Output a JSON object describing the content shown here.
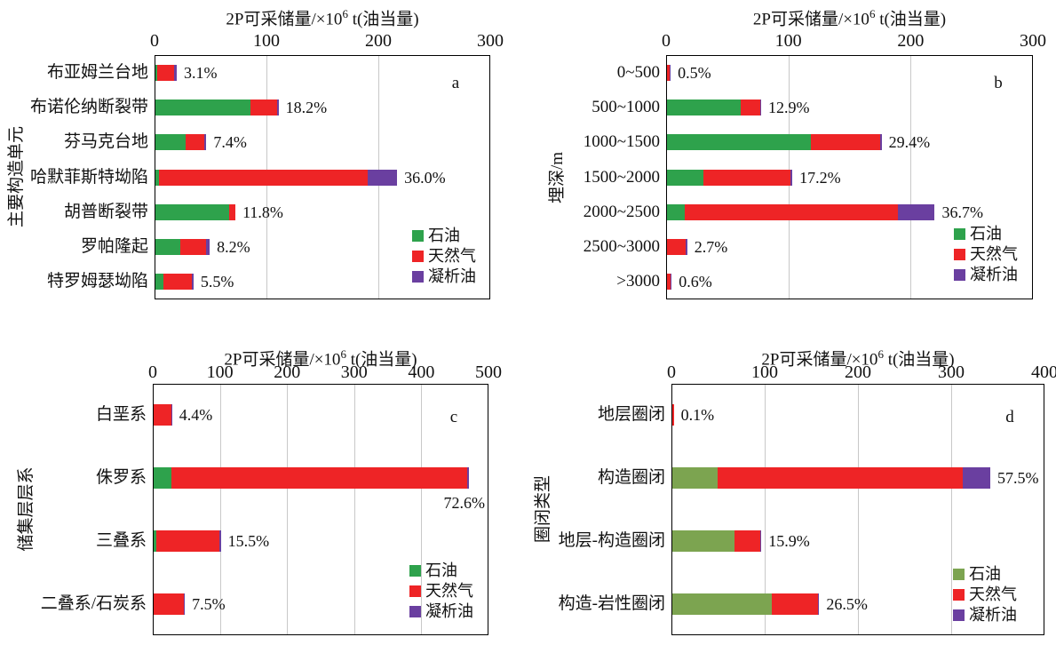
{
  "figure_title": "2P recoverable reserves distribution (4 stacked bar panels)",
  "axis_title": {
    "pre": "2P可采储量/×10",
    "sup": "6",
    "post": " t(油当量)"
  },
  "legend": {
    "oil": "石油",
    "gas": "天然气",
    "condensate": "凝析油"
  },
  "colors": {
    "oil_green": "#2EA24C",
    "oil_olive": "#7CA450",
    "gas_red": "#EE2426",
    "condensate_purple": "#6A3FA0",
    "gridline": "#C8C8C8",
    "frame": "#000000"
  },
  "chart_data": [
    {
      "panel": "a",
      "type": "bar",
      "orientation": "horizontal",
      "stacked": true,
      "xlabel": "2P可采储量/×10⁶ t(油当量)",
      "ylabel": "主要构造单元",
      "xlim": [
        0,
        300
      ],
      "xticks": [
        0,
        100,
        200,
        300
      ],
      "grid": true,
      "legend_position": "inside-bottom-right",
      "categories": [
        "布亚姆兰台地",
        "布诺伦纳断裂带",
        "芬马克台地",
        "哈默菲斯特坳陷",
        "胡普断裂带",
        "罗帕隆起",
        "特罗姆瑟坳陷"
      ],
      "series": [
        {
          "name": "石油",
          "values": [
            1.5,
            85,
            27,
            3,
            66,
            22,
            7
          ]
        },
        {
          "name": "天然气",
          "values": [
            15.5,
            24,
            17,
            187,
            5.5,
            23.5,
            25.5
          ]
        },
        {
          "name": "凝析油",
          "values": [
            2,
            1,
            1.5,
            26,
            0,
            3,
            1.5
          ]
        }
      ],
      "percent_labels": [
        "3.1%",
        "18.2%",
        "7.4%",
        "36.0%",
        "11.8%",
        "8.2%",
        "5.5%"
      ],
      "label_below_index": null
    },
    {
      "panel": "b",
      "type": "bar",
      "orientation": "horizontal",
      "stacked": true,
      "xlabel": "2P可采储量/×10⁶ t(油当量)",
      "ylabel": "埋深/m",
      "xlim": [
        0,
        300
      ],
      "xticks": [
        0,
        100,
        200,
        300
      ],
      "grid": true,
      "legend_position": "inside-bottom-right",
      "categories": [
        "0~500",
        "500~1000",
        "1000~1500",
        "1500~2000",
        "2000~2500",
        "2500~3000",
        ">3000"
      ],
      "series": [
        {
          "name": "石油",
          "values": [
            0,
            60,
            118,
            30,
            14.5,
            0,
            0
          ]
        },
        {
          "name": "天然气",
          "values": [
            2,
            16,
            56,
            71,
            174.5,
            15.5,
            3
          ]
        },
        {
          "name": "凝析油",
          "values": [
            1,
            1,
            1.5,
            1.5,
            30,
            1,
            0.8
          ]
        }
      ],
      "percent_labels": [
        "0.5%",
        "12.9%",
        "29.4%",
        "17.2%",
        "36.7%",
        "2.7%",
        "0.6%"
      ],
      "label_below_index": null
    },
    {
      "panel": "c",
      "type": "bar",
      "orientation": "horizontal",
      "stacked": true,
      "xlabel": "2P可采储量/×10⁶ t(油当量)",
      "ylabel": "储集层层系",
      "xlim": [
        0,
        500
      ],
      "xticks": [
        0,
        100,
        200,
        300,
        400,
        500
      ],
      "grid": true,
      "legend_position": "inside-bottom-right",
      "categories": [
        "白垩系",
        "侏罗系",
        "三叠系",
        "二叠系/石炭系"
      ],
      "series": [
        {
          "name": "石油",
          "values": [
            0,
            27,
            4,
            0
          ]
        },
        {
          "name": "天然气",
          "values": [
            26,
            440,
            94,
            45
          ]
        },
        {
          "name": "凝析油",
          "values": [
            1.5,
            2,
            2,
            1.5
          ]
        }
      ],
      "percent_labels": [
        "4.4%",
        "72.6%",
        "15.5%",
        "7.5%"
      ],
      "label_below_index": 1
    },
    {
      "panel": "d",
      "type": "bar",
      "orientation": "horizontal",
      "stacked": true,
      "xlabel": "2P可采储量/×10⁶ t(油当量)",
      "ylabel": "圈闭类型",
      "xlim": [
        0,
        400
      ],
      "xticks": [
        0,
        100,
        200,
        300,
        400
      ],
      "grid": true,
      "legend_position": "inside-bottom-right",
      "oil_color_variant": "olive",
      "categories": [
        "地层圈闭",
        "构造圈闭",
        "地层-构造圈闭",
        "构造-岩性圈闭"
      ],
      "series": [
        {
          "name": "石油",
          "values": [
            0,
            49,
            67,
            107
          ]
        },
        {
          "name": "天然气",
          "values": [
            1.5,
            262,
            27,
            49
          ]
        },
        {
          "name": "凝析油",
          "values": [
            0,
            30,
            1.5,
            1.5
          ]
        }
      ],
      "percent_labels": [
        "0.1%",
        "57.5%",
        "15.9%",
        "26.5%"
      ],
      "label_below_index": null
    }
  ]
}
